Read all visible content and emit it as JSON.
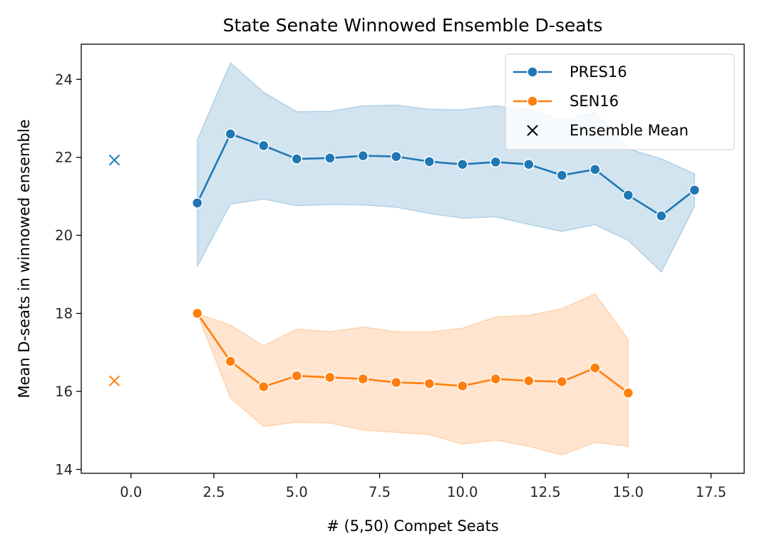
{
  "chart_data": {
    "type": "line",
    "title": "State Senate Winnowed Ensemble D-seats",
    "xlabel": "# (5,50) Compet Seats",
    "ylabel": "Mean D-seats in winnowed ensemble",
    "xlim": [
      -1.5,
      18.5
    ],
    "ylim": [
      13.9,
      24.9
    ],
    "xticks": [
      0.0,
      2.5,
      5.0,
      7.5,
      10.0,
      12.5,
      15.0,
      17.5
    ],
    "xtick_labels": [
      "0.0",
      "2.5",
      "5.0",
      "7.5",
      "10.0",
      "12.5",
      "15.0",
      "17.5"
    ],
    "yticks": [
      14,
      16,
      18,
      20,
      22,
      24
    ],
    "ytick_labels": [
      "14",
      "16",
      "18",
      "20",
      "22",
      "24"
    ],
    "legend_position": "top-right",
    "grid": false,
    "series": [
      {
        "name": "PRES16",
        "color": "#1f77b4",
        "x": [
          2,
          3,
          4,
          5,
          6,
          7,
          8,
          9,
          10,
          11,
          12,
          13,
          14,
          15,
          16,
          17
        ],
        "y": [
          20.83,
          22.6,
          22.3,
          21.96,
          21.98,
          22.04,
          22.02,
          21.89,
          21.82,
          21.88,
          21.82,
          21.54,
          21.69,
          21.03,
          20.5,
          21.16
        ],
        "ci_upper": [
          22.45,
          24.42,
          23.67,
          23.17,
          23.18,
          23.32,
          23.34,
          23.23,
          23.22,
          23.32,
          23.22,
          22.95,
          23.15,
          22.22,
          21.96,
          21.58
        ],
        "ci_lower": [
          19.2,
          20.8,
          20.93,
          20.76,
          20.79,
          20.78,
          20.72,
          20.56,
          20.44,
          20.47,
          20.28,
          20.1,
          20.27,
          19.87,
          19.06,
          20.74
        ]
      },
      {
        "name": "SEN16",
        "color": "#ff7f0e",
        "x": [
          2,
          3,
          4,
          5,
          6,
          7,
          8,
          9,
          10,
          11,
          12,
          13,
          14,
          15
        ],
        "y": [
          18.0,
          16.77,
          16.12,
          16.4,
          16.36,
          16.32,
          16.23,
          16.2,
          16.14,
          16.32,
          16.27,
          16.25,
          16.6,
          15.96
        ],
        "ci_upper": [
          18.0,
          17.7,
          17.17,
          17.6,
          17.53,
          17.65,
          17.53,
          17.52,
          17.62,
          17.91,
          17.95,
          18.12,
          18.5,
          17.33
        ],
        "ci_lower": [
          18.0,
          15.83,
          15.1,
          15.21,
          15.19,
          15.01,
          14.95,
          14.89,
          14.65,
          14.75,
          14.59,
          14.37,
          14.69,
          14.59
        ]
      }
    ],
    "ensemble_mean": {
      "name": "Ensemble Mean",
      "points": [
        {
          "x": -0.5,
          "y": 21.93,
          "color": "#1f77b4"
        },
        {
          "x": -0.5,
          "y": 16.27,
          "color": "#ff7f0e"
        }
      ]
    }
  }
}
